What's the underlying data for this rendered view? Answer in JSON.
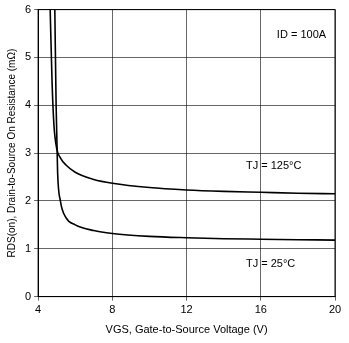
{
  "chart_data": {
    "type": "line",
    "x_label": "VGS, Gate-to-Source Voltage (V)",
    "y_label": "RDS(on), Drain-to-Source On Resistance (mΩ)",
    "annotations": [
      "ID = 100A"
    ],
    "series": [
      {
        "name": "TJ = 125°C",
        "color": "#000000",
        "x": [
          4.65,
          4.75,
          4.85,
          5.0,
          5.2,
          5.5,
          6,
          7,
          8,
          10,
          12,
          14,
          16,
          18,
          20
        ],
        "values": [
          6,
          4.5,
          3.6,
          3.1,
          2.9,
          2.75,
          2.6,
          2.45,
          2.37,
          2.28,
          2.23,
          2.2,
          2.18,
          2.16,
          2.15
        ]
      },
      {
        "name": "TJ = 25°C",
        "color": "#000000",
        "x": [
          4.9,
          4.97,
          5.05,
          5.2,
          5.5,
          6,
          7,
          8,
          10,
          12,
          14,
          16,
          18,
          20
        ],
        "values": [
          6,
          4.0,
          2.6,
          2.0,
          1.65,
          1.5,
          1.38,
          1.32,
          1.26,
          1.23,
          1.21,
          1.2,
          1.19,
          1.18
        ]
      }
    ],
    "xlim": [
      4,
      20
    ],
    "xticks": [
      4,
      8,
      12,
      16,
      20
    ],
    "ylim": [
      0,
      6
    ],
    "yticks": [
      0,
      1,
      2,
      3,
      4,
      5,
      6
    ],
    "grid": true
  }
}
